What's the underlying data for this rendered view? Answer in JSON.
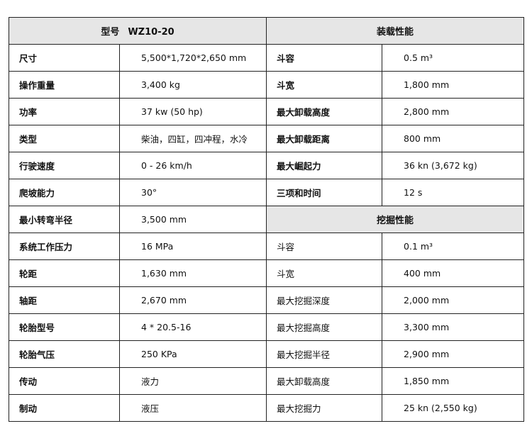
{
  "header": {
    "model_label": "型号",
    "model": "WZ10-20",
    "loader_title": "装载性能",
    "digger_title": "挖掘性能"
  },
  "specs": [
    {
      "label": "尺寸",
      "value": "5,500*1,720*2,650 mm"
    },
    {
      "label": "操作重量",
      "value": "3,400 kg"
    },
    {
      "label": "功率",
      "value": "37 kw (50 hp)"
    },
    {
      "label": "类型",
      "value": "柴油，四缸，四冲程，水冷"
    },
    {
      "label": "行驶速度",
      "value": "0 - 26 km/h"
    },
    {
      "label": "爬坡能力",
      "value": "30°"
    },
    {
      "label": "最小转弯半径",
      "value": "3,500 mm"
    },
    {
      "label": "系统工作压力",
      "value": "16 MPa"
    },
    {
      "label": "轮距",
      "value": "1,630 mm"
    },
    {
      "label": "轴距",
      "value": "2,670 mm"
    },
    {
      "label": "轮胎型号",
      "value": "4 * 20.5-16"
    },
    {
      "label": "轮胎气压",
      "value": "250 KPa"
    },
    {
      "label": "传动",
      "value": "液力"
    },
    {
      "label": "制动",
      "value": "液压"
    }
  ],
  "loader": [
    {
      "label": "斗容",
      "value": "0.5 m³"
    },
    {
      "label": "斗宽",
      "value": "1,800 mm"
    },
    {
      "label": "最大卸载高度",
      "value": "2,800 mm"
    },
    {
      "label": "最大卸载距离",
      "value": "800 mm"
    },
    {
      "label": "最大崛起力",
      "value": "36 kn (3,672 kg)"
    },
    {
      "label": "三项和时间",
      "value": "12 s"
    }
  ],
  "digger": [
    {
      "label": "斗容",
      "value": "0.1 m³"
    },
    {
      "label": "斗宽",
      "value": "400 mm"
    },
    {
      "label": "最大挖掘深度",
      "value": "2,000 mm"
    },
    {
      "label": "最大挖掘高度",
      "value": "3,300 mm"
    },
    {
      "label": "最大挖掘半径",
      "value": "2,900 mm"
    },
    {
      "label": "最大卸载高度",
      "value": "1,850 mm"
    },
    {
      "label": "最大挖掘力",
      "value": "25 kn (2,550 kg)"
    }
  ]
}
